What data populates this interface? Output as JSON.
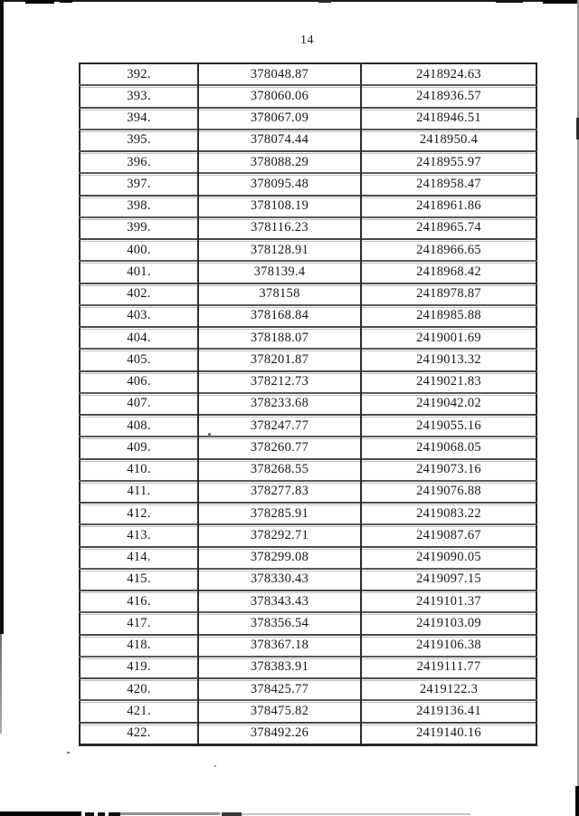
{
  "page": {
    "number": "14"
  },
  "colors": {
    "ink": "#161616",
    "table_border": "#262626",
    "row_rule": "#4a4a4a",
    "scan_mark": "#0c0c0c"
  },
  "table": {
    "rows": [
      {
        "no": "392.",
        "x": "378048.87",
        "y": "2418924.63"
      },
      {
        "no": "393.",
        "x": "378060.06",
        "y": "2418936.57"
      },
      {
        "no": "394.",
        "x": "378067.09",
        "y": "2418946.51"
      },
      {
        "no": "395.",
        "x": "378074.44",
        "y": "2418950.4"
      },
      {
        "no": "396.",
        "x": "378088.29",
        "y": "2418955.97"
      },
      {
        "no": "397.",
        "x": "378095.48",
        "y": "2418958.47"
      },
      {
        "no": "398.",
        "x": "378108.19",
        "y": "2418961.86"
      },
      {
        "no": "399.",
        "x": "378116.23",
        "y": "2418965.74"
      },
      {
        "no": "400.",
        "x": "378128.91",
        "y": "2418966.65"
      },
      {
        "no": "401.",
        "x": "378139.4",
        "y": "2418968.42"
      },
      {
        "no": "402.",
        "x": "378158",
        "y": "2418978.87"
      },
      {
        "no": "403.",
        "x": "378168.84",
        "y": "2418985.88"
      },
      {
        "no": "404.",
        "x": "378188.07",
        "y": "2419001.69"
      },
      {
        "no": "405.",
        "x": "378201.87",
        "y": "2419013.32"
      },
      {
        "no": "406.",
        "x": "378212.73",
        "y": "2419021.83"
      },
      {
        "no": "407.",
        "x": "378233.68",
        "y": "2419042.02"
      },
      {
        "no": "408.",
        "x": "378247.77",
        "y": "2419055.16"
      },
      {
        "no": "409.",
        "x": "378260.77",
        "y": "2419068.05"
      },
      {
        "no": "410.",
        "x": "378268.55",
        "y": "2419073.16"
      },
      {
        "no": "411.",
        "x": "378277.83",
        "y": "2419076.88"
      },
      {
        "no": "412.",
        "x": "378285.91",
        "y": "2419083.22"
      },
      {
        "no": "413.",
        "x": "378292.71",
        "y": "2419087.67"
      },
      {
        "no": "414.",
        "x": "378299.08",
        "y": "2419090.05"
      },
      {
        "no": "415.",
        "x": "378330.43",
        "y": "2419097.15"
      },
      {
        "no": "416.",
        "x": "378343.43",
        "y": "2419101.37"
      },
      {
        "no": "417.",
        "x": "378356.54",
        "y": "2419103.09"
      },
      {
        "no": "418.",
        "x": "378367.18",
        "y": "2419106.38"
      },
      {
        "no": "419.",
        "x": "378383.91",
        "y": "2419111.77"
      },
      {
        "no": "420.",
        "x": "378425.77",
        "y": "2419122.3"
      },
      {
        "no": "421.",
        "x": "378475.82",
        "y": "2419136.41"
      },
      {
        "no": "422.",
        "x": "378492.26",
        "y": "2419140.16"
      }
    ]
  }
}
